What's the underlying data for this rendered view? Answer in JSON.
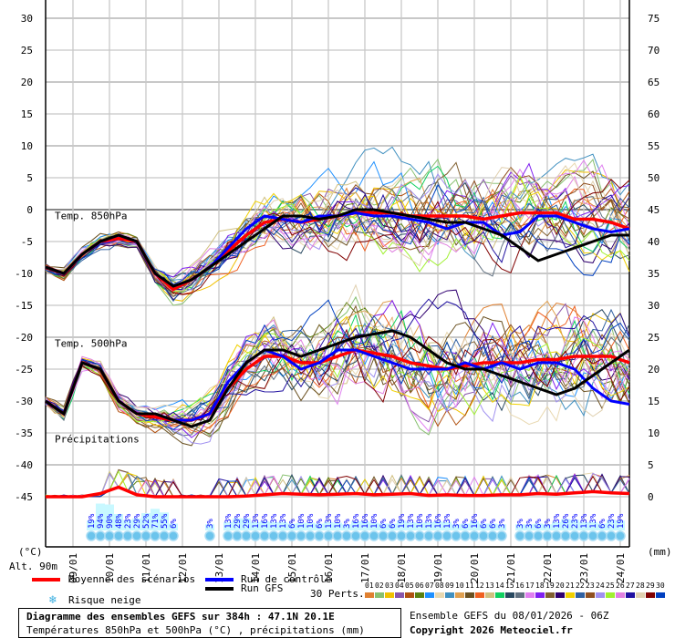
{
  "chart_data": {
    "type": "line",
    "title": "Diagramme des ensembles GEFS sur 384h : 47.1N 20.1E",
    "subtitle": "Températures 850hPa et 500hPa (°C) , précipitations (mm)",
    "left_unit": "(°C)",
    "right_unit": "(mm)",
    "altitude": "Alt. 90m",
    "ylim": [
      -45,
      30
    ],
    "yticks": [
      30,
      25,
      20,
      15,
      10,
      5,
      0,
      -5,
      -10,
      -15,
      -20,
      -25,
      -30,
      -35,
      -40,
      -45
    ],
    "right_ticks": [
      75,
      70,
      65,
      60,
      55,
      50,
      45,
      40,
      35,
      30,
      25,
      20,
      15,
      10,
      5,
      0
    ],
    "x_hours_step": 12,
    "xlim_hours": [
      0,
      384
    ],
    "date_labels": [
      "09/01",
      "10/01",
      "11/01",
      "12/01",
      "13/01",
      "14/01",
      "15/01",
      "16/01",
      "17/01",
      "18/01",
      "19/01",
      "20/01",
      "21/01",
      "22/01",
      "23/01",
      "24/01"
    ],
    "panel_labels": {
      "t850": "Temp. 850hPa",
      "t500": "Temp. 500hPa",
      "precip": "Précipitations"
    },
    "series": [
      {
        "name": "Moyenne des scénarios 850hPa",
        "color": "#ff0000",
        "values": [
          -9,
          -10,
          -7,
          -5,
          -4.5,
          -5,
          -10,
          -12.5,
          -11,
          -9,
          -6.5,
          -4,
          -2,
          -1.5,
          -2,
          -1.5,
          -1,
          -0.5,
          -0.5,
          -0.5,
          -1,
          -1,
          -1,
          -1,
          -1.5,
          -1,
          -0.5,
          -0.5,
          -0.5,
          -1.5,
          -1.5,
          -2,
          -3
        ]
      },
      {
        "name": "Run de contrôle 850hPa",
        "color": "#0000ff",
        "values": [
          -9,
          -10,
          -7,
          -5,
          -4,
          -5,
          -10,
          -12,
          -11,
          -9,
          -6,
          -3,
          -1,
          -1.5,
          -2,
          -1,
          -1,
          -0.5,
          -1,
          -1,
          -1.5,
          -2,
          -3,
          -2,
          -2,
          -4,
          -3.5,
          -1,
          -1,
          -2,
          -3,
          -3.5,
          -3
        ]
      },
      {
        "name": "Run GFS 850hPa",
        "color": "#000000",
        "values": [
          -9,
          -10,
          -7,
          -5,
          -4,
          -5,
          -10,
          -12,
          -11,
          -9,
          -7,
          -5,
          -3,
          -1,
          -1,
          -1.5,
          -1,
          0,
          0,
          -0.5,
          -1,
          -1.5,
          -2,
          -2,
          -3,
          -4,
          -6,
          -8,
          -7,
          -6,
          -5,
          -4,
          -4
        ]
      },
      {
        "name": "Moyenne des scénarios 500hPa",
        "color": "#ff0000",
        "values": [
          -30,
          -32,
          -24,
          -25,
          -30,
          -32,
          -32.5,
          -33,
          -33,
          -32,
          -28,
          -25,
          -23,
          -23,
          -24,
          -24,
          -23,
          -22,
          -22.5,
          -23,
          -24,
          -24.5,
          -25,
          -24.5,
          -24,
          -24,
          -24,
          -23.5,
          -23.5,
          -23,
          -23,
          -23,
          -24
        ]
      },
      {
        "name": "Run de contrôle 500hPa",
        "color": "#0000ff",
        "values": [
          -30,
          -32,
          -24,
          -25,
          -30,
          -32,
          -32,
          -33,
          -33,
          -32,
          -27,
          -24,
          -22,
          -23,
          -25,
          -24,
          -22,
          -22,
          -23,
          -24,
          -25,
          -25,
          -25,
          -24,
          -25,
          -24,
          -25,
          -24,
          -24,
          -25,
          -28,
          -30,
          -30.5
        ]
      },
      {
        "name": "Run GFS 500hPa",
        "color": "#000000",
        "values": [
          -30,
          -32,
          -24,
          -25,
          -30,
          -32,
          -32,
          -33,
          -34,
          -33,
          -28,
          -24,
          -22,
          -22,
          -23,
          -22,
          -21,
          -20,
          -19.5,
          -19,
          -20,
          -22,
          -24,
          -25,
          -25,
          -26,
          -27,
          -28,
          -29,
          -28,
          -26,
          -24,
          -22
        ]
      },
      {
        "name": "Moyenne des scénarios précipitations",
        "color": "#ff0000",
        "values": [
          0,
          0,
          0,
          0.5,
          1.5,
          0.3,
          0,
          0,
          0,
          0,
          0,
          0.1,
          0.3,
          0.5,
          0.4,
          0.3,
          0.4,
          0.5,
          0.3,
          0.4,
          0.5,
          0.2,
          0.3,
          0.2,
          0.2,
          0.3,
          0.3,
          0.5,
          0.4,
          0.6,
          0.8,
          0.6,
          0.5
        ]
      }
    ],
    "snow_risk_groups": [
      {
        "start_hour": 30,
        "step_hours": 6,
        "values": [
          19,
          94,
          90,
          48,
          23,
          29,
          52,
          71,
          55,
          6
        ]
      },
      {
        "start_hour": 108,
        "step_hours": 6,
        "values": [
          3
        ]
      },
      {
        "start_hour": 120,
        "step_hours": 6,
        "values": [
          13,
          29,
          29,
          13,
          16,
          13,
          13,
          6,
          10,
          10,
          6,
          13,
          10,
          3,
          16,
          16,
          10,
          6,
          6,
          19,
          13,
          10,
          13,
          16,
          13,
          3,
          6,
          16,
          6,
          6,
          3
        ]
      },
      {
        "start_hour": 312,
        "step_hours": 6,
        "values": [
          3,
          3,
          6,
          3,
          13,
          26,
          23,
          13,
          13,
          6,
          23,
          19
        ]
      }
    ]
  },
  "legend": {
    "mean": "Moyenne des scénarios",
    "control": "Run de contrôle",
    "gfs": "Run GFS",
    "snow": "Risque neige",
    "perts": "30 Perts.",
    "members": [
      {
        "n": "01",
        "c": "#e08030"
      },
      {
        "n": "02",
        "c": "#88c070"
      },
      {
        "n": "03",
        "c": "#f0c000"
      },
      {
        "n": "04",
        "c": "#8855aa"
      },
      {
        "n": "05",
        "c": "#b05010"
      },
      {
        "n": "06",
        "c": "#5a8010"
      },
      {
        "n": "07",
        "c": "#1e90ff"
      },
      {
        "n": "08",
        "c": "#e8d8b0"
      },
      {
        "n": "09",
        "c": "#4090c0"
      },
      {
        "n": "10",
        "c": "#e0a050"
      },
      {
        "n": "11",
        "c": "#6a5020"
      },
      {
        "n": "12",
        "c": "#f06020"
      },
      {
        "n": "13",
        "c": "#d0c080"
      },
      {
        "n": "14",
        "c": "#10d060"
      },
      {
        "n": "15",
        "c": "#284860"
      },
      {
        "n": "16",
        "c": "#607080"
      },
      {
        "n": "17",
        "c": "#e080f0"
      },
      {
        "n": "18",
        "c": "#8020f0"
      },
      {
        "n": "19",
        "c": "#806030"
      },
      {
        "n": "20",
        "c": "#300070"
      },
      {
        "n": "21",
        "c": "#f0d000"
      },
      {
        "n": "22",
        "c": "#3060a0"
      },
      {
        "n": "23",
        "c": "#905020"
      },
      {
        "n": "24",
        "c": "#a090f0"
      },
      {
        "n": "25",
        "c": "#a0f030"
      },
      {
        "n": "26",
        "c": "#e080e0"
      },
      {
        "n": "27",
        "c": "#2010a0"
      },
      {
        "n": "28",
        "c": "#e0d0b0"
      },
      {
        "n": "29",
        "c": "#800000"
      },
      {
        "n": "30",
        "c": "#0040c0"
      }
    ]
  },
  "footer": {
    "run": "Ensemble GEFS du 08/01/2026 - 06Z",
    "copyright": "Copyright 2026 Meteociel.fr"
  }
}
